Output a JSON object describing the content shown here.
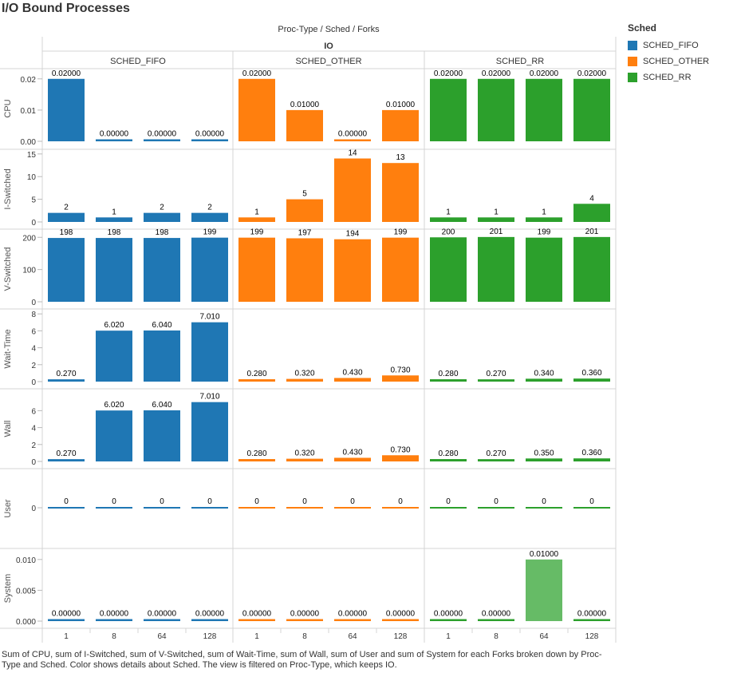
{
  "title": "I/O Bound Processes",
  "colors": {
    "SCHED_FIFO": "#1f77b4",
    "SCHED_OTHER": "#ff7f0e",
    "SCHED_RR": "#2ca02c",
    "highlight_rr": "#66bb66"
  },
  "legend": {
    "title": "Sched",
    "items": [
      {
        "label": "SCHED_FIFO",
        "color": "#1f77b4"
      },
      {
        "label": "SCHED_OTHER",
        "color": "#ff7f0e"
      },
      {
        "label": "SCHED_RR",
        "color": "#2ca02c"
      }
    ]
  },
  "caption": "Sum of CPU, sum of I-Switched, sum of V-Switched, sum of Wait-Time, sum of Wall, sum of User and sum of System for each Forks broken down by Proc-Type and Sched.  Color shows details about Sched. The view is filtered on Proc-Type, which keeps IO.",
  "chart_data": {
    "type": "bar",
    "header_path": "Proc-Type  /  Sched  /  Forks",
    "proc_type": "IO",
    "groups": [
      "SCHED_FIFO",
      "SCHED_OTHER",
      "SCHED_RR"
    ],
    "categories": [
      "1",
      "8",
      "64",
      "128"
    ],
    "metrics": [
      {
        "name": "CPU",
        "ylim": [
          0,
          0.0225
        ],
        "ticks": [
          {
            "v": 0,
            "label": "0.00"
          },
          {
            "v": 0.01,
            "label": "0.01"
          },
          {
            "v": 0.02,
            "label": "0.02"
          }
        ],
        "values": {
          "SCHED_FIFO": [
            0.02,
            0,
            0,
            0
          ],
          "SCHED_OTHER": [
            0.02,
            0.01,
            0,
            0.01
          ],
          "SCHED_RR": [
            0.02,
            0.02,
            0.02,
            0.02
          ]
        },
        "labels": {
          "SCHED_FIFO": [
            "0.02000",
            "0.00000",
            "0.00000",
            "0.00000"
          ],
          "SCHED_OTHER": [
            "0.02000",
            "0.01000",
            "0.00000",
            "0.01000"
          ],
          "SCHED_RR": [
            "0.02000",
            "0.02000",
            "0.02000",
            "0.02000"
          ]
        }
      },
      {
        "name": "I-Switched",
        "ylim": [
          0,
          15.5
        ],
        "ticks": [
          {
            "v": 0,
            "label": "0"
          },
          {
            "v": 5,
            "label": "5"
          },
          {
            "v": 10,
            "label": "10"
          },
          {
            "v": 15,
            "label": "15"
          }
        ],
        "values": {
          "SCHED_FIFO": [
            2,
            1,
            2,
            2
          ],
          "SCHED_OTHER": [
            1,
            5,
            14,
            13
          ],
          "SCHED_RR": [
            1,
            1,
            1,
            4
          ]
        },
        "labels": {
          "SCHED_FIFO": [
            "2",
            "1",
            "2",
            "2"
          ],
          "SCHED_OTHER": [
            "1",
            "5",
            "14",
            "13"
          ],
          "SCHED_RR": [
            "1",
            "1",
            "1",
            "4"
          ]
        }
      },
      {
        "name": "V-Switched",
        "ylim": [
          0,
          218
        ],
        "ticks": [
          {
            "v": 0,
            "label": "0"
          },
          {
            "v": 100,
            "label": "100"
          },
          {
            "v": 200,
            "label": "200"
          }
        ],
        "values": {
          "SCHED_FIFO": [
            198,
            198,
            198,
            199
          ],
          "SCHED_OTHER": [
            199,
            197,
            194,
            199
          ],
          "SCHED_RR": [
            200,
            201,
            199,
            201
          ]
        },
        "labels": {
          "SCHED_FIFO": [
            "198",
            "198",
            "198",
            "199"
          ],
          "SCHED_OTHER": [
            "199",
            "197",
            "194",
            "199"
          ],
          "SCHED_RR": [
            "200",
            "201",
            "199",
            "201"
          ]
        }
      },
      {
        "name": "Wait-Time",
        "ylim": [
          0,
          8.3
        ],
        "ticks": [
          {
            "v": 0,
            "label": "0"
          },
          {
            "v": 2,
            "label": "2"
          },
          {
            "v": 4,
            "label": "4"
          },
          {
            "v": 6,
            "label": "6"
          },
          {
            "v": 8,
            "label": "8"
          }
        ],
        "values": {
          "SCHED_FIFO": [
            0.27,
            6.02,
            6.04,
            7.01
          ],
          "SCHED_OTHER": [
            0.28,
            0.32,
            0.43,
            0.73
          ],
          "SCHED_RR": [
            0.28,
            0.27,
            0.34,
            0.36
          ]
        },
        "labels": {
          "SCHED_FIFO": [
            "0.270",
            "6.020",
            "6.040",
            "7.010"
          ],
          "SCHED_OTHER": [
            "0.280",
            "0.320",
            "0.430",
            "0.730"
          ],
          "SCHED_RR": [
            "0.280",
            "0.270",
            "0.340",
            "0.360"
          ]
        }
      },
      {
        "name": "Wall",
        "ylim": [
          0,
          8.3
        ],
        "ticks": [
          {
            "v": 0,
            "label": "0"
          },
          {
            "v": 2,
            "label": "2"
          },
          {
            "v": 4,
            "label": "4"
          },
          {
            "v": 6,
            "label": "6"
          }
        ],
        "values": {
          "SCHED_FIFO": [
            0.27,
            6.02,
            6.04,
            7.01
          ],
          "SCHED_OTHER": [
            0.28,
            0.32,
            0.43,
            0.73
          ],
          "SCHED_RR": [
            0.28,
            0.27,
            0.35,
            0.36
          ]
        },
        "labels": {
          "SCHED_FIFO": [
            "0.270",
            "6.020",
            "6.040",
            "7.010"
          ],
          "SCHED_OTHER": [
            "0.280",
            "0.320",
            "0.430",
            "0.730"
          ],
          "SCHED_RR": [
            "0.280",
            "0.270",
            "0.350",
            "0.360"
          ]
        }
      },
      {
        "name": "User",
        "ylim": [
          -1,
          1
        ],
        "ticks": [
          {
            "v": 0,
            "label": "0"
          }
        ],
        "values": {
          "SCHED_FIFO": [
            0,
            0,
            0,
            0
          ],
          "SCHED_OTHER": [
            0,
            0,
            0,
            0
          ],
          "SCHED_RR": [
            0,
            0,
            0,
            0
          ]
        },
        "labels": {
          "SCHED_FIFO": [
            "0",
            "0",
            "0",
            "0"
          ],
          "SCHED_OTHER": [
            "0",
            "0",
            "0",
            "0"
          ],
          "SCHED_RR": [
            "0",
            "0",
            "0",
            "0"
          ]
        }
      },
      {
        "name": "System",
        "ylim": [
          0,
          0.0114
        ],
        "ticks": [
          {
            "v": 0,
            "label": "0.000"
          },
          {
            "v": 0.005,
            "label": "0.005"
          },
          {
            "v": 0.01,
            "label": "0.010"
          }
        ],
        "values": {
          "SCHED_FIFO": [
            0,
            0,
            0,
            0
          ],
          "SCHED_OTHER": [
            0,
            0,
            0,
            0
          ],
          "SCHED_RR": [
            0,
            0,
            0.01,
            0
          ]
        },
        "labels": {
          "SCHED_FIFO": [
            "0.00000",
            "0.00000",
            "0.00000",
            "0.00000"
          ],
          "SCHED_OTHER": [
            "0.00000",
            "0.00000",
            "0.00000",
            "0.00000"
          ],
          "SCHED_RR": [
            "0.00000",
            "0.00000",
            "0.01000",
            "0.00000"
          ]
        }
      }
    ],
    "legend_position": "right",
    "grid": false
  }
}
